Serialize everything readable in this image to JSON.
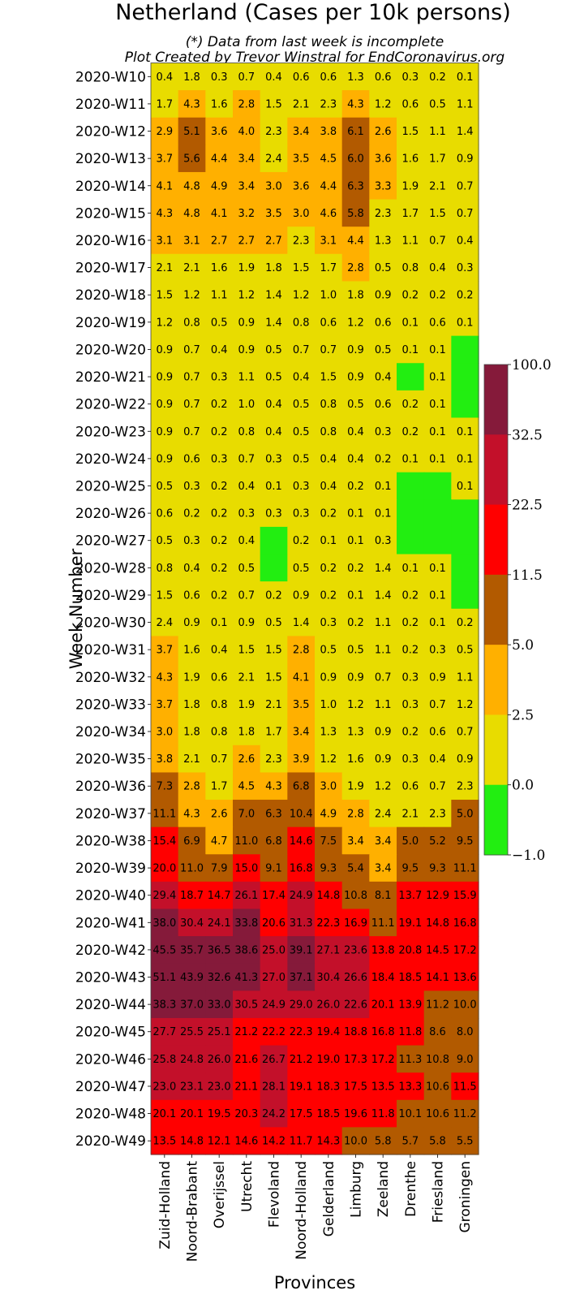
{
  "chart_data": {
    "type": "heatmap",
    "title": "Netherland (Cases per 10k persons)",
    "subtitle_lines": [
      "(*) Data from last week is incomplete",
      "Plot Created by Trevor Winstral for EndCoronavirus.org"
    ],
    "xlabel": "Provinces",
    "ylabel": "Week Number",
    "categories": [
      "Zuid-Holland",
      "Noord-Brabant",
      "Overijssel",
      "Utrecht",
      "Flevoland",
      "Noord-Holland",
      "Gelderland",
      "Limburg",
      "Zeeland",
      "Drenthe",
      "Friesland",
      "Groningen"
    ],
    "weeks": [
      "2020-W10",
      "2020-W11",
      "2020-W12",
      "2020-W13",
      "2020-W14",
      "2020-W15",
      "2020-W16",
      "2020-W17",
      "2020-W18",
      "2020-W19",
      "2020-W20",
      "2020-W21",
      "2020-W22",
      "2020-W23",
      "2020-W24",
      "2020-W25",
      "2020-W26",
      "2020-W27",
      "2020-W28",
      "2020-W29",
      "2020-W30",
      "2020-W31",
      "2020-W32",
      "2020-W33",
      "2020-W34",
      "2020-W35",
      "2020-W36",
      "2020-W37",
      "2020-W38",
      "2020-W39",
      "2020-W40",
      "2020-W41",
      "2020-W42",
      "2020-W43",
      "2020-W44",
      "2020-W45",
      "2020-W46",
      "2020-W47",
      "2020-W48",
      "2020-W49"
    ],
    "values": [
      [
        0.4,
        1.8,
        0.3,
        0.7,
        0.4,
        0.6,
        0.6,
        1.3,
        0.6,
        0.3,
        0.2,
        0.1
      ],
      [
        1.7,
        4.3,
        1.6,
        2.8,
        1.5,
        2.1,
        2.3,
        4.3,
        1.2,
        0.6,
        0.5,
        1.1
      ],
      [
        2.9,
        5.1,
        3.6,
        4.0,
        2.3,
        3.4,
        3.8,
        6.1,
        2.6,
        1.5,
        1.1,
        1.4
      ],
      [
        3.7,
        5.6,
        4.4,
        3.4,
        2.4,
        3.5,
        4.5,
        6.0,
        3.6,
        1.6,
        1.7,
        0.9
      ],
      [
        4.1,
        4.8,
        4.9,
        3.4,
        3.0,
        3.6,
        4.4,
        6.3,
        3.3,
        1.9,
        2.1,
        0.7
      ],
      [
        4.3,
        4.8,
        4.1,
        3.2,
        3.5,
        3.0,
        4.6,
        5.8,
        2.3,
        1.7,
        1.5,
        0.7
      ],
      [
        3.1,
        3.1,
        2.7,
        2.7,
        2.7,
        2.3,
        3.1,
        4.4,
        1.3,
        1.1,
        0.7,
        0.4
      ],
      [
        2.1,
        2.1,
        1.6,
        1.9,
        1.8,
        1.5,
        1.7,
        2.8,
        0.5,
        0.8,
        0.4,
        0.3
      ],
      [
        1.5,
        1.2,
        1.1,
        1.2,
        1.4,
        1.2,
        1.0,
        1.8,
        0.9,
        0.2,
        0.2,
        0.2
      ],
      [
        1.2,
        0.8,
        0.5,
        0.9,
        1.4,
        0.8,
        0.6,
        1.2,
        0.6,
        0.1,
        0.6,
        0.1
      ],
      [
        0.9,
        0.7,
        0.4,
        0.9,
        0.5,
        0.7,
        0.7,
        0.9,
        0.5,
        0.1,
        0.1,
        null
      ],
      [
        0.9,
        0.7,
        0.3,
        1.1,
        0.5,
        0.4,
        1.5,
        0.9,
        0.4,
        null,
        0.1,
        null
      ],
      [
        0.9,
        0.7,
        0.2,
        1.0,
        0.4,
        0.5,
        0.8,
        0.5,
        0.6,
        0.2,
        0.1,
        null
      ],
      [
        0.9,
        0.7,
        0.2,
        0.8,
        0.4,
        0.5,
        0.8,
        0.4,
        0.3,
        0.2,
        0.1,
        0.1
      ],
      [
        0.9,
        0.6,
        0.3,
        0.7,
        0.3,
        0.5,
        0.4,
        0.4,
        0.2,
        0.1,
        0.1,
        0.1
      ],
      [
        0.5,
        0.3,
        0.2,
        0.4,
        0.1,
        0.3,
        0.4,
        0.2,
        0.1,
        null,
        null,
        0.1
      ],
      [
        0.6,
        0.2,
        0.2,
        0.3,
        0.3,
        0.3,
        0.2,
        0.1,
        0.1,
        null,
        null,
        null
      ],
      [
        0.5,
        0.3,
        0.2,
        0.4,
        null,
        0.2,
        0.1,
        0.1,
        0.3,
        null,
        null,
        null
      ],
      [
        0.8,
        0.4,
        0.2,
        0.5,
        null,
        0.5,
        0.2,
        0.2,
        1.4,
        0.1,
        0.1,
        null
      ],
      [
        1.5,
        0.6,
        0.2,
        0.7,
        0.2,
        0.9,
        0.2,
        0.1,
        1.4,
        0.2,
        0.1,
        null
      ],
      [
        2.4,
        0.9,
        0.1,
        0.9,
        0.5,
        1.4,
        0.3,
        0.2,
        1.1,
        0.2,
        0.1,
        0.2
      ],
      [
        3.7,
        1.6,
        0.4,
        1.5,
        1.5,
        2.8,
        0.5,
        0.5,
        1.1,
        0.2,
        0.3,
        0.5
      ],
      [
        4.3,
        1.9,
        0.6,
        2.1,
        1.5,
        4.1,
        0.9,
        0.9,
        0.7,
        0.3,
        0.9,
        1.1
      ],
      [
        3.7,
        1.8,
        0.8,
        1.9,
        2.1,
        3.5,
        1.0,
        1.2,
        1.1,
        0.3,
        0.7,
        1.2
      ],
      [
        3.0,
        1.8,
        0.8,
        1.8,
        1.7,
        3.4,
        1.3,
        1.3,
        0.9,
        0.2,
        0.6,
        0.7
      ],
      [
        3.8,
        2.1,
        0.7,
        2.6,
        2.3,
        3.9,
        1.2,
        1.6,
        0.9,
        0.3,
        0.4,
        0.9
      ],
      [
        7.3,
        2.8,
        1.7,
        4.5,
        4.3,
        6.8,
        3.0,
        1.9,
        1.2,
        0.6,
        0.7,
        2.3
      ],
      [
        11.1,
        4.3,
        2.6,
        7.0,
        6.3,
        10.4,
        4.9,
        2.8,
        2.4,
        2.1,
        2.3,
        5.0
      ],
      [
        15.4,
        6.9,
        4.7,
        11.0,
        6.8,
        14.6,
        7.5,
        3.4,
        3.4,
        5.0,
        5.2,
        9.5
      ],
      [
        20.0,
        11.0,
        7.9,
        15.0,
        9.1,
        16.8,
        9.3,
        5.4,
        3.4,
        9.5,
        9.3,
        11.1
      ],
      [
        29.4,
        18.7,
        14.7,
        26.1,
        17.4,
        24.9,
        14.8,
        10.8,
        8.1,
        13.7,
        12.9,
        15.9
      ],
      [
        38.0,
        30.4,
        24.1,
        33.8,
        20.6,
        31.3,
        22.3,
        16.9,
        11.1,
        19.1,
        14.8,
        16.8
      ],
      [
        45.5,
        35.7,
        36.5,
        38.6,
        25.0,
        39.1,
        27.1,
        23.6,
        13.8,
        20.8,
        14.5,
        17.2
      ],
      [
        51.1,
        43.9,
        32.6,
        41.3,
        27.0,
        37.1,
        30.4,
        26.6,
        18.4,
        18.5,
        14.1,
        13.6
      ],
      [
        38.3,
        37.0,
        33.0,
        30.5,
        24.9,
        29.0,
        26.0,
        22.6,
        20.1,
        13.9,
        11.2,
        10.0
      ],
      [
        27.7,
        25.5,
        25.1,
        21.2,
        22.2,
        22.3,
        19.4,
        18.8,
        16.8,
        11.8,
        8.6,
        8.0
      ],
      [
        25.8,
        24.8,
        26.0,
        21.6,
        26.7,
        21.2,
        19.0,
        17.3,
        17.2,
        11.3,
        10.8,
        9.0
      ],
      [
        23.0,
        23.1,
        23.0,
        21.1,
        28.1,
        19.1,
        18.3,
        17.5,
        13.5,
        13.3,
        10.6,
        11.5
      ],
      [
        20.1,
        20.1,
        19.5,
        20.3,
        24.2,
        17.5,
        18.5,
        19.6,
        11.8,
        10.1,
        10.6,
        11.2
      ],
      [
        13.5,
        14.8,
        12.1,
        14.6,
        14.2,
        11.7,
        14.3,
        10.0,
        5.8,
        5.7,
        5.8,
        5.5
      ]
    ],
    "colorbar": {
      "ticks": [
        "100.0",
        "32.5",
        "22.5",
        "11.5",
        "5.0",
        "2.5",
        "0.0",
        "−1.0"
      ],
      "bins": [
        {
          "min": -1.0,
          "max": 0.0,
          "color": "#22ee11"
        },
        {
          "min": 0.0,
          "max": 2.5,
          "color": "#e8dc00"
        },
        {
          "min": 2.5,
          "max": 5.0,
          "color": "#ffb000"
        },
        {
          "min": 5.0,
          "max": 11.5,
          "color": "#b25a00"
        },
        {
          "min": 11.5,
          "max": 22.5,
          "color": "#ff0000"
        },
        {
          "min": 22.5,
          "max": 32.5,
          "color": "#c3102a"
        },
        {
          "min": 32.5,
          "max": 100.0,
          "color": "#851a3a"
        }
      ]
    },
    "grid": false
  }
}
